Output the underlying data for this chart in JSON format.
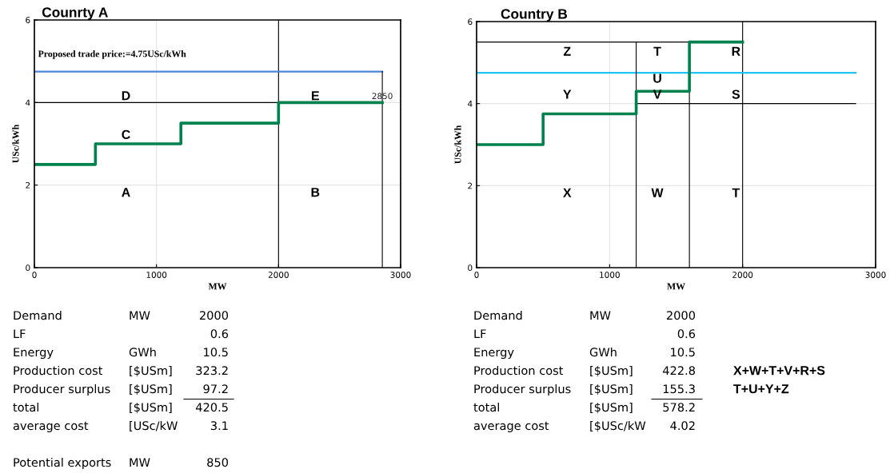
{
  "chart_data": [
    {
      "type": "step",
      "title": "Counrty A",
      "xlabel": "MW",
      "ylabel": "USc/kWh",
      "xlim": [
        0,
        3000
      ],
      "ylim": [
        0,
        6
      ],
      "xticks": [
        0,
        1000,
        2000,
        3000
      ],
      "yticks": [
        0,
        2,
        4,
        6
      ],
      "grid": true,
      "legend": false,
      "series": [
        {
          "type": "step",
          "color": "#00824f",
          "x": [
            0,
            500,
            1200,
            2000,
            2850
          ],
          "values": [
            2.5,
            3,
            3.5,
            4,
            4
          ]
        },
        {
          "type": "line",
          "color": "#4a86d8",
          "x": [
            0,
            2850
          ],
          "values": [
            4.75,
            4.75
          ]
        },
        {
          "type": "line",
          "color": "#000000",
          "x": [
            0,
            2850
          ],
          "values": [
            4,
            4
          ]
        },
        {
          "type": "line",
          "color": "#000000",
          "x": [
            2850,
            2850
          ],
          "values": [
            0,
            4.75
          ]
        }
      ],
      "ref_lines": [
        {
          "axis": "x",
          "value": 2000,
          "color": "#000000"
        }
      ],
      "annotations": [
        "Proposed trade price:=4.75USc/kWh",
        "A",
        "B",
        "C",
        "D",
        "E",
        "2850"
      ]
    },
    {
      "type": "other",
      "annotations": [
        "Demand",
        "MW",
        "2000",
        "LF",
        "0.6",
        "Energy",
        "GWh",
        "10.5",
        "Production cost",
        "[$USm]",
        "323.2",
        "Producer surplus",
        "[$USm]",
        "97.2",
        "total",
        "[$USm]",
        "420.5",
        "average cost",
        "[USc/kW",
        "3.1",
        "Potential exports",
        "MW",
        "850"
      ]
    },
    {
      "type": "step",
      "title": "Country B",
      "xlabel": "MW",
      "ylabel": "USc/kWh",
      "xlim": [
        0,
        3000
      ],
      "ylim": [
        0,
        6
      ],
      "xticks": [
        0,
        1000,
        2000,
        3000
      ],
      "yticks": [
        0,
        2,
        4,
        6
      ],
      "grid": true,
      "legend": false,
      "series": [
        {
          "type": "step",
          "color": "#00824f",
          "x": [
            0,
            500,
            1200,
            1600,
            2000
          ],
          "values": [
            3,
            3.75,
            4.3,
            5.5,
            5.5
          ]
        },
        {
          "type": "line",
          "color": "#1ec4f4",
          "x": [
            0,
            2850
          ],
          "values": [
            4.75,
            4.75
          ]
        },
        {
          "type": "line",
          "color": "#000000",
          "x": [
            0,
            2000
          ],
          "values": [
            5.5,
            5.5
          ]
        },
        {
          "type": "line",
          "color": "#000000",
          "x": [
            1200,
            2850
          ],
          "values": [
            4,
            4
          ]
        },
        {
          "type": "line",
          "color": "#000000",
          "x": [
            1200,
            1200
          ],
          "values": [
            0,
            5.5
          ]
        },
        {
          "type": "line",
          "color": "#000000",
          "x": [
            1600,
            1600
          ],
          "values": [
            0,
            5.5
          ]
        }
      ],
      "ref_lines": [
        {
          "axis": "x",
          "value": 2000,
          "color": "#000000"
        }
      ],
      "annotations": [
        "Z",
        "T",
        "R",
        "U",
        "Y",
        "V",
        "S",
        "X",
        "W",
        "T"
      ]
    },
    {
      "type": "other",
      "annotations": [
        "Demand",
        "MW",
        "2000",
        "LF",
        "0.6",
        "Energy",
        "GWh",
        "10.5",
        "Production cost",
        "[$USm]",
        "422.8",
        "Producer surplus",
        "[$USm]",
        "155.3",
        "total",
        "[$USm]",
        "578.2",
        "average cost",
        "[$USc/kW",
        "4.02"
      ]
    },
    {
      "type": "other",
      "annotations": [
        "X+W+T+V+R+S",
        "T+U+Y+Z"
      ]
    }
  ]
}
